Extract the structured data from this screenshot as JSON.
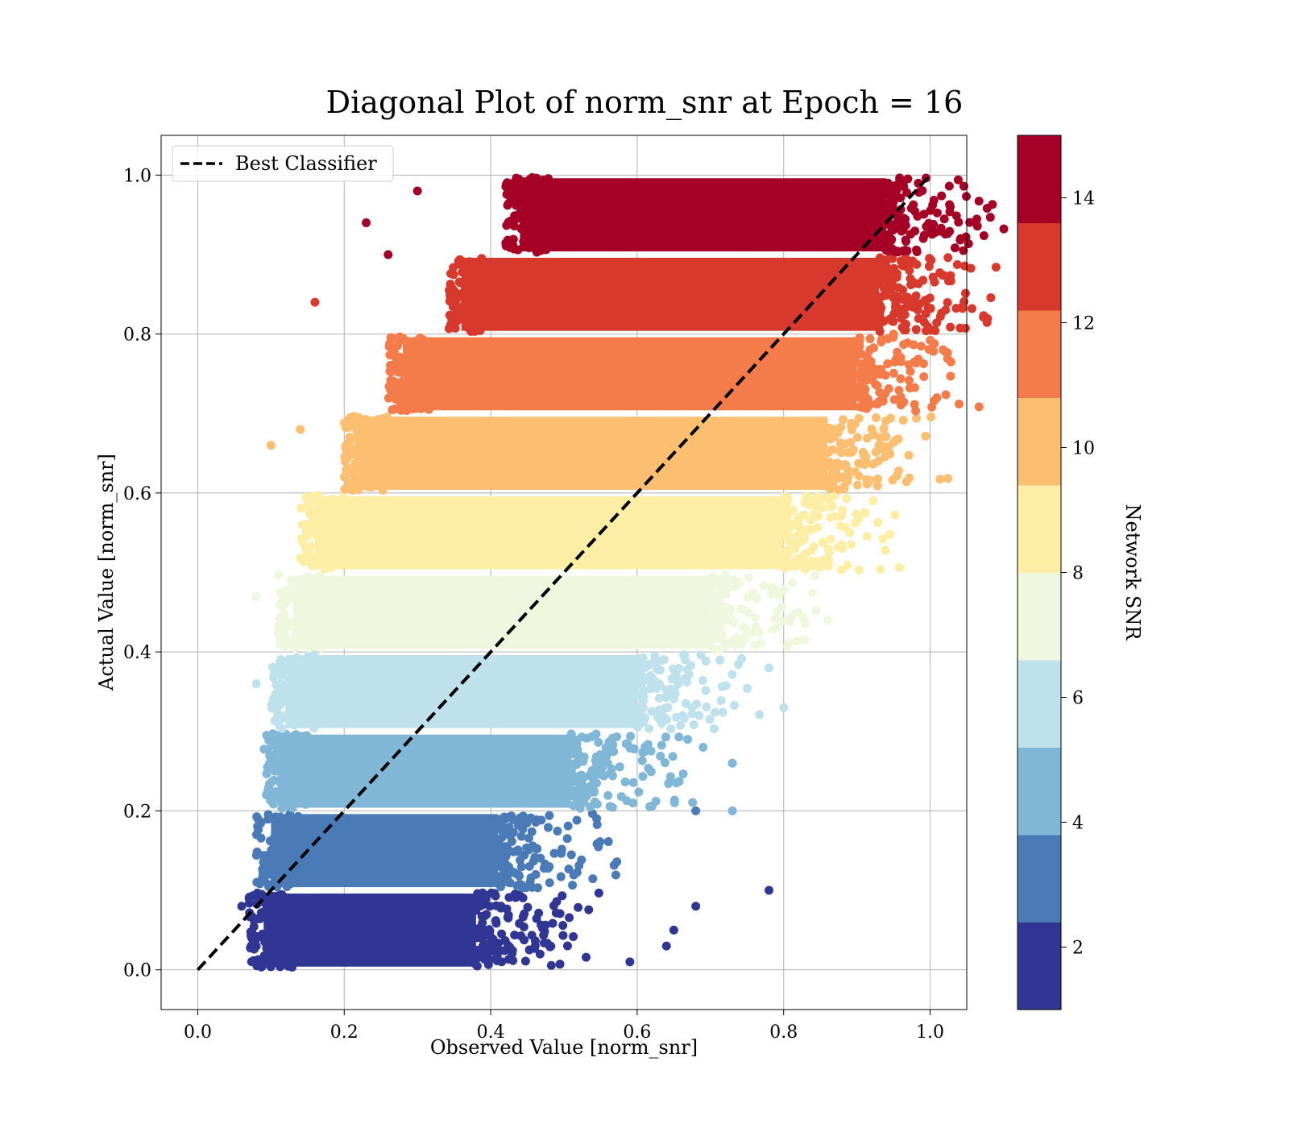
{
  "chart_data": {
    "type": "scatter",
    "title": "Diagonal Plot of norm_snr at Epoch = 16",
    "xlabel": "Observed Value [norm_snr]",
    "ylabel": "Actual Value [norm_snr]",
    "xlim": [
      -0.05,
      1.05
    ],
    "ylim": [
      -0.05,
      1.05
    ],
    "x_ticks": [
      "0.0",
      "0.2",
      "0.4",
      "0.6",
      "0.8",
      "1.0"
    ],
    "y_ticks": [
      "0.0",
      "0.2",
      "0.4",
      "0.6",
      "0.8",
      "1.0"
    ],
    "grid": true,
    "legend": {
      "position": "upper-left",
      "entries": [
        "Best Classifier"
      ]
    },
    "reference_line": {
      "name": "Best Classifier",
      "x": [
        0.0,
        1.0
      ],
      "y": [
        0.0,
        1.0
      ],
      "style": "dashed",
      "color": "#000000"
    },
    "colorbar": {
      "label": "Network SNR",
      "range": [
        1,
        15
      ],
      "ticks": [
        "2",
        "4",
        "6",
        "8",
        "10",
        "12",
        "14"
      ],
      "colormap": "RdYlBu_r",
      "colors": [
        "#313695",
        "#4a7bb7",
        "#80b6d6",
        "#bfe1ec",
        "#eff8df",
        "#fdeea5",
        "#fcbe70",
        "#f47c4b",
        "#d73a2c",
        "#a50026"
      ]
    },
    "bands": [
      {
        "snr": 2,
        "y_range": [
          0.0,
          0.1
        ],
        "x_range": [
          0.07,
          0.42
        ],
        "color": "#313695"
      },
      {
        "snr": 3,
        "y_range": [
          0.1,
          0.2
        ],
        "x_range": [
          0.08,
          0.45
        ],
        "color": "#4a7bb7"
      },
      {
        "snr": 5,
        "y_range": [
          0.2,
          0.3
        ],
        "x_range": [
          0.09,
          0.55
        ],
        "color": "#80b6d6"
      },
      {
        "snr": 6,
        "y_range": [
          0.3,
          0.4
        ],
        "x_range": [
          0.1,
          0.64
        ],
        "color": "#bfe1ec"
      },
      {
        "snr": 7,
        "y_range": [
          0.4,
          0.5
        ],
        "x_range": [
          0.11,
          0.74
        ],
        "color": "#eff8df"
      },
      {
        "snr": 9,
        "y_range": [
          0.5,
          0.6
        ],
        "x_range": [
          0.14,
          0.84
        ],
        "color": "#fdeea5"
      },
      {
        "snr": 10,
        "y_range": [
          0.6,
          0.7
        ],
        "x_range": [
          0.2,
          0.9
        ],
        "color": "#fcbe70"
      },
      {
        "snr": 11,
        "y_range": [
          0.7,
          0.8
        ],
        "x_range": [
          0.26,
          0.94
        ],
        "color": "#f47c4b"
      },
      {
        "snr": 13,
        "y_range": [
          0.8,
          0.9
        ],
        "x_range": [
          0.34,
          0.97
        ],
        "color": "#d73a2c"
      },
      {
        "snr": 14,
        "y_range": [
          0.9,
          1.0
        ],
        "x_range": [
          0.42,
          0.98
        ],
        "color": "#a50026"
      }
    ],
    "outliers": [
      {
        "x": 0.78,
        "y": 0.1,
        "color": "#313695"
      },
      {
        "x": 0.68,
        "y": 0.08,
        "color": "#313695"
      },
      {
        "x": 0.65,
        "y": 0.05,
        "color": "#313695"
      },
      {
        "x": 0.64,
        "y": 0.03,
        "color": "#313695"
      },
      {
        "x": 0.59,
        "y": 0.01,
        "color": "#313695"
      },
      {
        "x": 0.68,
        "y": 0.2,
        "color": "#4a7bb7"
      },
      {
        "x": 0.73,
        "y": 0.26,
        "color": "#80b6d6"
      },
      {
        "x": 0.73,
        "y": 0.2,
        "color": "#80b6d6"
      },
      {
        "x": 0.69,
        "y": 0.28,
        "color": "#80b6d6"
      },
      {
        "x": 0.8,
        "y": 0.33,
        "color": "#bfe1ec"
      },
      {
        "x": 0.78,
        "y": 0.38,
        "color": "#bfe1ec"
      },
      {
        "x": 0.86,
        "y": 0.44,
        "color": "#eff8df"
      },
      {
        "x": 0.88,
        "y": 0.53,
        "color": "#fdeea5"
      },
      {
        "x": 0.08,
        "y": 0.47,
        "color": "#eff8df"
      },
      {
        "x": 0.08,
        "y": 0.36,
        "color": "#bfe1ec"
      },
      {
        "x": 0.1,
        "y": 0.66,
        "color": "#fcbe70"
      },
      {
        "x": 0.14,
        "y": 0.68,
        "color": "#fcbe70"
      },
      {
        "x": 0.16,
        "y": 0.84,
        "color": "#d73a2c"
      },
      {
        "x": 0.23,
        "y": 0.94,
        "color": "#a50026"
      },
      {
        "x": 0.3,
        "y": 0.98,
        "color": "#a50026"
      },
      {
        "x": 0.26,
        "y": 0.9,
        "color": "#a50026"
      },
      {
        "x": 0.93,
        "y": 0.66,
        "color": "#fcbe70"
      },
      {
        "x": 0.95,
        "y": 0.8,
        "color": "#f47c4b"
      },
      {
        "x": 0.06,
        "y": 0.08,
        "color": "#313695"
      },
      {
        "x": 0.07,
        "y": 0.09,
        "color": "#313695"
      }
    ]
  }
}
